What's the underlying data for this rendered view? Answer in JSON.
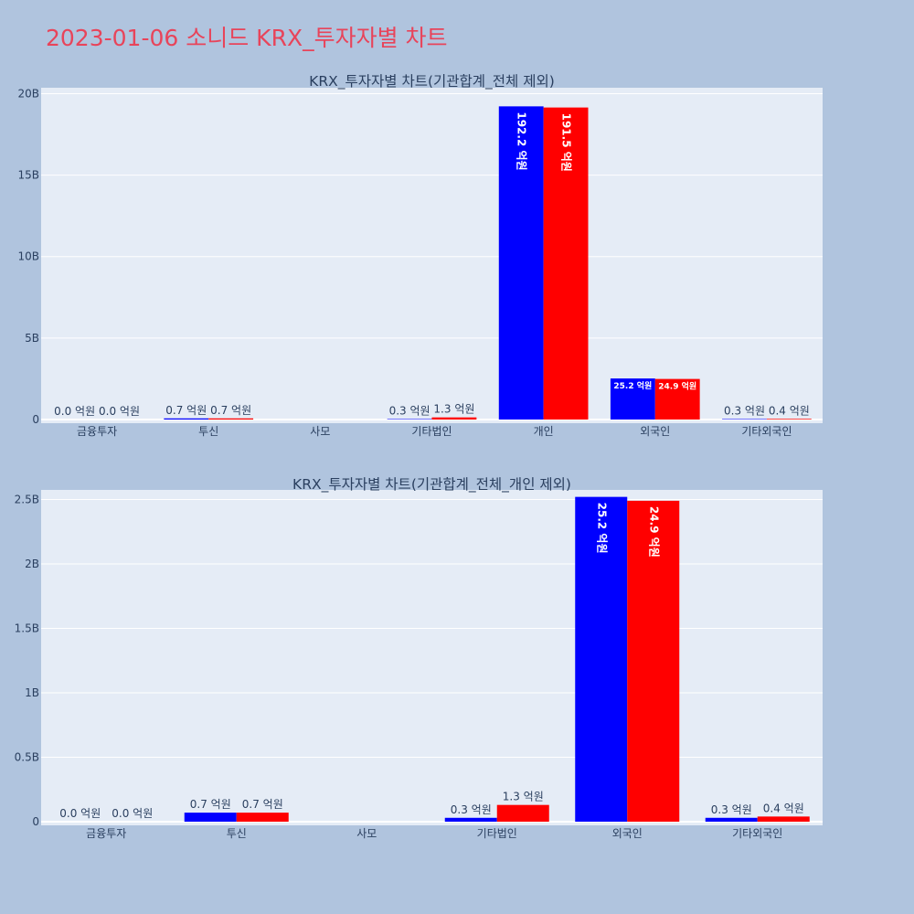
{
  "page": {
    "title": "2023-01-06 소니드 KRX_투자자별 차트"
  },
  "colors": {
    "page_bg": "#b0c4de",
    "plot_bg": "#e5ecf6",
    "grid": "#ffffff",
    "buy": "#0000ff",
    "sell": "#ff0000",
    "title": "#e8445a",
    "text": "#2a3f5f"
  },
  "chart_data": [
    {
      "type": "bar",
      "title": "KRX_투자자별 차트(기관합계_전체 제외)",
      "categories": [
        "금융투자",
        "투신",
        "사모",
        "기타법인",
        "개인",
        "외국인",
        "기타외국인"
      ],
      "series": [
        {
          "color": "#0000ff",
          "values": [
            0.0,
            70000000,
            null,
            30000000,
            19220000000,
            2520000000,
            30000000
          ],
          "labels": [
            "0.0 억원",
            "0.7 억원",
            "",
            "0.3 억원",
            "192.2 억원",
            "25.2 억원",
            "0.3 억원"
          ]
        },
        {
          "color": "#ff0000",
          "values": [
            0.0,
            70000000,
            null,
            130000000,
            19150000000,
            2490000000,
            40000000
          ],
          "labels": [
            "0.0 억원",
            "0.7 억원",
            "",
            "1.3 억원",
            "191.5 억원",
            "24.9 억원",
            "0.4 억원"
          ]
        }
      ],
      "ylim": [
        0,
        20250000000
      ],
      "yticks": [
        0,
        5000000000,
        10000000000,
        15000000000,
        20000000000
      ],
      "ytick_labels": [
        "0",
        "5B",
        "10B",
        "15B",
        "20B"
      ],
      "grid": true,
      "xlabel": "",
      "ylabel": ""
    },
    {
      "type": "bar",
      "title": "KRX_투자자별 차트(기관합계_전체_개인 제외)",
      "categories": [
        "금융투자",
        "투신",
        "사모",
        "기타법인",
        "외국인",
        "기타외국인"
      ],
      "series": [
        {
          "color": "#0000ff",
          "values": [
            0.0,
            70000000,
            null,
            30000000,
            2520000000,
            30000000
          ],
          "labels": [
            "0.0 억원",
            "0.7 억원",
            "",
            "0.3 억원",
            "25.2 억원",
            "0.3 억원"
          ]
        },
        {
          "color": "#ff0000",
          "values": [
            0.0,
            70000000,
            null,
            130000000,
            2490000000,
            40000000
          ],
          "labels": [
            "0.0 억원",
            "0.7 억원",
            "",
            "1.3 억원",
            "24.9 억원",
            "0.4 억원"
          ]
        }
      ],
      "ylim": [
        0,
        2560000000
      ],
      "yticks": [
        0,
        500000000,
        1000000000,
        1500000000,
        2000000000,
        2500000000
      ],
      "ytick_labels": [
        "0",
        "0.5B",
        "1B",
        "1.5B",
        "2B",
        "2.5B"
      ],
      "grid": true,
      "xlabel": "",
      "ylabel": ""
    }
  ]
}
